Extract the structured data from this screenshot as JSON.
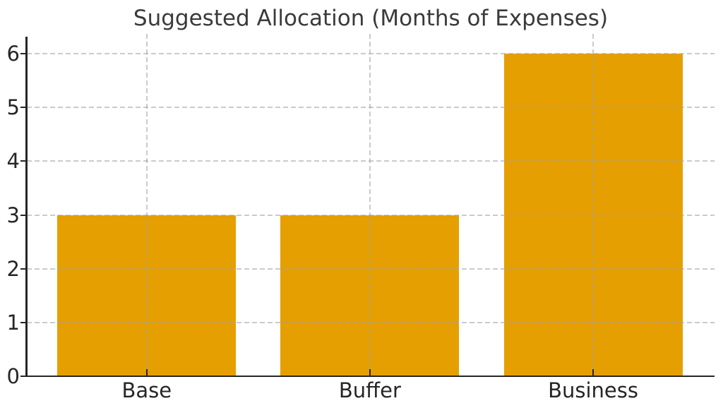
{
  "chart_data": {
    "type": "bar",
    "title": "Suggested Allocation (Months of Expenses)",
    "categories": [
      "Base",
      "Buffer",
      "Business"
    ],
    "values": [
      3,
      3,
      6
    ],
    "xlabel": "",
    "ylabel": "",
    "ylim": [
      0,
      6.3
    ],
    "yticks": [
      0,
      1,
      2,
      3,
      4,
      5,
      6
    ],
    "bar_color": "#E69F00",
    "grid": true,
    "grid_style": "dashed",
    "grid_color": "#cccccc",
    "grid_above_bars": true,
    "axis_color": "#262626",
    "text_color": "#262626",
    "title_color": "#3a3a3a",
    "background_color": "#ffffff",
    "legend_position": "none"
  }
}
